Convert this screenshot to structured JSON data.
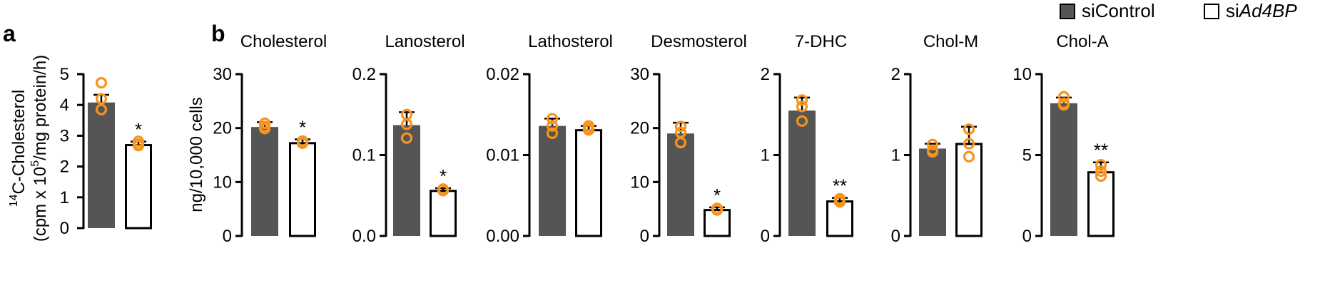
{
  "colors": {
    "control": "#555555",
    "knockdown": "#ffffff",
    "point": "#f7941d",
    "axis": "#000000"
  },
  "legend": {
    "control": {
      "prefix": "si",
      "name": "Control"
    },
    "knockdown": {
      "prefix": "si",
      "name": "Ad4BP"
    }
  },
  "panel_a": {
    "label": "a",
    "ylabel_super": "14",
    "ylabel_rest": "C-Cholesterol",
    "ylabel_line2_pre": "(cpm x 10",
    "ylabel_line2_super": "5",
    "ylabel_line2_post": "/mg protein/h)"
  },
  "panel_b": {
    "label": "b",
    "ylabel": "ng/10,000 cells"
  },
  "chart_data": [
    {
      "id": "a",
      "type": "bar",
      "title": "",
      "ylim": [
        0,
        5
      ],
      "ticks": [
        0,
        1,
        2,
        3,
        4,
        5
      ],
      "tick_labels": [
        "0",
        "1",
        "2",
        "3",
        "4",
        "5"
      ],
      "categories": [
        "siControl",
        "siAd4BP"
      ],
      "values": [
        4.08,
        2.73
      ],
      "errors": [
        0.25,
        0.08
      ],
      "points": [
        [
          4.72,
          4.2,
          3.85
        ],
        [
          2.82,
          2.73,
          2.68
        ]
      ],
      "sig": [
        "",
        "*"
      ]
    },
    {
      "id": "cholesterol",
      "type": "bar",
      "title": "Cholesterol",
      "ylim": [
        0,
        30
      ],
      "ticks": [
        0,
        10,
        20,
        30
      ],
      "tick_labels": [
        "0",
        "10",
        "20",
        "30"
      ],
      "categories": [
        "siControl",
        "siAd4BP"
      ],
      "values": [
        20.2,
        17.4
      ],
      "errors": [
        0.9,
        0.5
      ],
      "points": [
        [
          20.9,
          19.9,
          20.3
        ],
        [
          17.4,
          17.2,
          17.6
        ]
      ],
      "sig": [
        "",
        "*"
      ]
    },
    {
      "id": "lanosterol",
      "type": "bar",
      "title": "Lanosterol",
      "ylim": [
        0,
        0.2
      ],
      "ticks": [
        0,
        0.1,
        0.2
      ],
      "tick_labels": [
        "0.0",
        "0.1",
        "0.2"
      ],
      "categories": [
        "siControl",
        "siAd4BP"
      ],
      "values": [
        0.137,
        0.057
      ],
      "errors": [
        0.016,
        0.002
      ],
      "points": [
        [
          0.15,
          0.138,
          0.121
        ],
        [
          0.058,
          0.056,
          0.057
        ]
      ],
      "sig": [
        "",
        "*"
      ]
    },
    {
      "id": "lathosterol",
      "type": "bar",
      "title": "Lathosterol",
      "ylim": [
        0,
        0.02
      ],
      "ticks": [
        0,
        0.01,
        0.02
      ],
      "tick_labels": [
        "0.00",
        "0.01",
        "0.02"
      ],
      "categories": [
        "siControl",
        "siAd4BP"
      ],
      "values": [
        0.0136,
        0.0132
      ],
      "errors": [
        0.0009,
        0.0004
      ],
      "points": [
        [
          0.0145,
          0.0136,
          0.0127
        ],
        [
          0.0136,
          0.0133,
          0.0131
        ]
      ],
      "sig": [
        "",
        ""
      ]
    },
    {
      "id": "desmosterol",
      "type": "bar",
      "title": "Desmosterol",
      "ylim": [
        0,
        30
      ],
      "ticks": [
        0,
        10,
        20,
        30
      ],
      "tick_labels": [
        "0",
        "10",
        "20",
        "30"
      ],
      "categories": [
        "siControl",
        "siAd4BP"
      ],
      "values": [
        19.0,
        5.0
      ],
      "errors": [
        2.0,
        0.3
      ],
      "points": [
        [
          20.3,
          19.2,
          17.3
        ],
        [
          5.0,
          4.8,
          5.1
        ]
      ],
      "sig": [
        "",
        "*"
      ]
    },
    {
      "id": "7dhc",
      "type": "bar",
      "title": "7-DHC",
      "ylim": [
        0,
        2
      ],
      "ticks": [
        0,
        1,
        2
      ],
      "tick_labels": [
        "0",
        "1",
        "2"
      ],
      "categories": [
        "siControl",
        "siAd4BP"
      ],
      "values": [
        1.55,
        0.44
      ],
      "errors": [
        0.16,
        0.03
      ],
      "points": [
        [
          1.68,
          1.6,
          1.42
        ],
        [
          0.46,
          0.44,
          0.42
        ]
      ],
      "sig": [
        "",
        "**"
      ]
    },
    {
      "id": "cholm",
      "type": "bar",
      "title": "Chol-M",
      "ylim": [
        0,
        2
      ],
      "ticks": [
        0,
        1,
        2
      ],
      "tick_labels": [
        "0",
        "1",
        "2"
      ],
      "categories": [
        "siControl",
        "siAd4BP"
      ],
      "values": [
        1.08,
        1.15
      ],
      "errors": [
        0.06,
        0.2
      ],
      "points": [
        [
          1.13,
          1.06,
          1.04
        ],
        [
          1.32,
          1.14,
          0.98
        ]
      ],
      "sig": [
        "",
        ""
      ]
    },
    {
      "id": "chola",
      "type": "bar",
      "title": "Chol-A",
      "ylim": [
        0,
        10
      ],
      "ticks": [
        0,
        5,
        10
      ],
      "tick_labels": [
        "0",
        "5",
        "10"
      ],
      "categories": [
        "siControl",
        "siAd4BP"
      ],
      "values": [
        8.2,
        4.0
      ],
      "errors": [
        0.35,
        0.55
      ],
      "points": [
        [
          8.6,
          8.1,
          8.2
        ],
        [
          4.4,
          4.0,
          3.7
        ]
      ],
      "sig": [
        "",
        "**"
      ]
    }
  ]
}
